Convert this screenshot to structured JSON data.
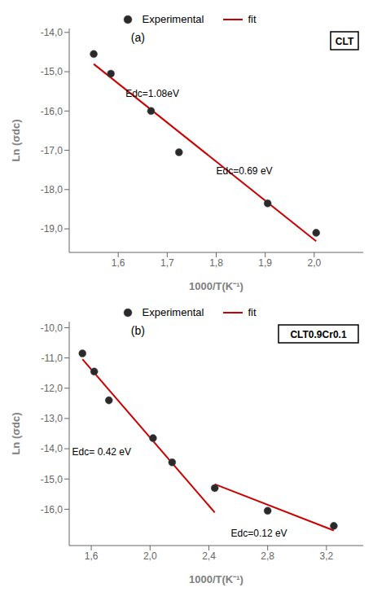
{
  "chart_data": [
    {
      "type": "scatter",
      "title": "(a)",
      "subtitle": "CLT",
      "x_label": "1000/T(K⁻¹)",
      "y_label": "Ln (σdc)",
      "xlim": [
        1.5,
        2.1
      ],
      "ylim": [
        -19.6,
        -13.9
      ],
      "xticks": [
        {
          "value": 1.6,
          "label": "1,6"
        },
        {
          "value": 1.7,
          "label": "1,7"
        },
        {
          "value": 1.8,
          "label": "1,8"
        },
        {
          "value": 1.9,
          "label": "1,9"
        },
        {
          "value": 2.0,
          "label": "2,0"
        }
      ],
      "yticks": [
        {
          "value": -19,
          "label": "-19,0"
        },
        {
          "value": -18,
          "label": "-18,0"
        },
        {
          "value": -17,
          "label": "-17,0"
        },
        {
          "value": -16,
          "label": "-16,0"
        },
        {
          "value": -15,
          "label": "-15,0"
        },
        {
          "value": -14,
          "label": "-14,0"
        }
      ],
      "legend": "top",
      "series": [
        {
          "name": "fit",
          "type": "line",
          "color": "#cc0000",
          "x": [
            1.55,
            2.004
          ],
          "values": [
            -14.8042,
            -19.3142
          ]
        },
        {
          "name": "Experimental",
          "type": "scatter",
          "color": "#2a2a2a",
          "x": [
            1.55,
            1.585,
            1.667,
            1.724,
            1.905,
            2.004
          ],
          "values": [
            -14.55,
            -15.05,
            -16.0,
            -17.05,
            -18.35,
            -19.1
          ]
        }
      ],
      "annotations": [
        {
          "text": "Edc=1.08eV",
          "x": 1.615,
          "y": -15.65
        },
        {
          "text": "Edc=0.69 eV",
          "x": 1.8,
          "y": -17.6
        }
      ]
    },
    {
      "type": "scatter",
      "title": "(b)",
      "subtitle": "CLT0.9Cr0.1",
      "x_label": "1000/T(K⁻¹)",
      "y_label": "Ln (σdc)",
      "xlim": [
        1.45,
        3.45
      ],
      "ylim": [
        -17.2,
        -9.8
      ],
      "xticks": [
        {
          "value": 1.6,
          "label": "1,6"
        },
        {
          "value": 2.0,
          "label": "2,0"
        },
        {
          "value": 2.4,
          "label": "2,4"
        },
        {
          "value": 2.8,
          "label": "2,8"
        },
        {
          "value": 3.2,
          "label": "3,2"
        }
      ],
      "yticks": [
        {
          "value": -16,
          "label": "-16,0"
        },
        {
          "value": -15,
          "label": "-15,0"
        },
        {
          "value": -14,
          "label": "-14,0"
        },
        {
          "value": -13,
          "label": "-13,0"
        },
        {
          "value": -12,
          "label": "-12,0"
        },
        {
          "value": -11,
          "label": "-11,0"
        },
        {
          "value": -10,
          "label": "-10,0"
        }
      ],
      "legend": "top",
      "series": [
        {
          "name": "fit",
          "type": "line",
          "color": "#cc0000",
          "x": [
            1.54,
            2.44
          ],
          "values": [
            -11.0398,
            -16.1072
          ]
        },
        {
          "name": "fit",
          "type": "line",
          "color": "#cc0000",
          "x": [
            2.44,
            3.25
          ],
          "values": [
            -15.1724,
            -16.7008
          ]
        },
        {
          "name": "Experimental",
          "type": "scatter",
          "color": "#2a2a2a",
          "x": [
            1.54,
            1.62,
            1.72,
            2.02,
            2.15,
            2.44,
            2.8,
            3.25
          ],
          "values": [
            -10.85,
            -11.45,
            -12.4,
            -13.65,
            -14.45,
            -15.3,
            -16.05,
            -16.55
          ]
        }
      ],
      "annotations": [
        {
          "text": "Edc= 0.42 eV",
          "x": 1.47,
          "y": -14.2
        },
        {
          "text": "Edc=0.12 eV",
          "x": 2.55,
          "y": -16.9
        }
      ]
    }
  ]
}
